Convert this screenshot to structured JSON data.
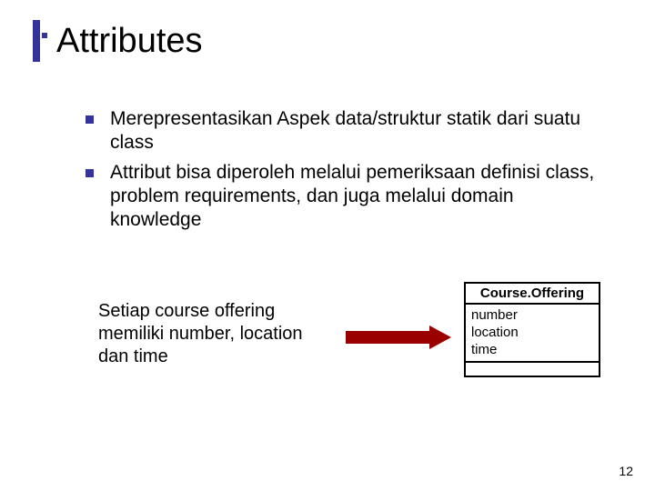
{
  "title": "Attributes",
  "bullets": [
    "Merepresentasikan Aspek data/struktur statik dari suatu class",
    "Attribut bisa diperoleh melalui pemeriksaan definisi class, problem requirements, dan juga  melalui domain knowledge"
  ],
  "example_text": "Setiap course offering memiliki number, location dan time",
  "class_diagram": {
    "name": "Course.Offering",
    "attributes": [
      "number",
      "location",
      "time"
    ]
  },
  "colors": {
    "accent": "#333399",
    "arrow": "#9a0000",
    "text": "#000000",
    "bg": "#ffffff"
  },
  "page_number": "12"
}
